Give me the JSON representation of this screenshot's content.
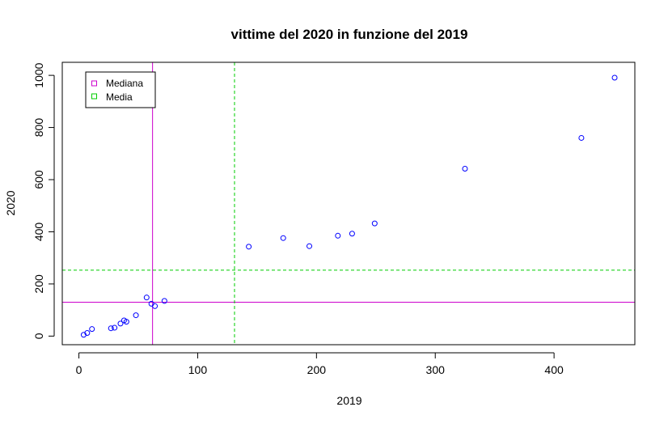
{
  "chart_data": {
    "type": "scatter",
    "title": "vittime del 2020 in funzione del 2019",
    "xlabel": "2019",
    "ylabel": "2020",
    "xlim": [
      -14,
      468
    ],
    "ylim": [
      -33,
      1050
    ],
    "xticks": [
      0,
      100,
      200,
      300,
      400
    ],
    "yticks": [
      0,
      200,
      400,
      600,
      800,
      1000
    ],
    "grid": false,
    "points": [
      {
        "x": 4,
        "y": 5
      },
      {
        "x": 7,
        "y": 12
      },
      {
        "x": 11,
        "y": 27
      },
      {
        "x": 27,
        "y": 30
      },
      {
        "x": 30,
        "y": 32
      },
      {
        "x": 35,
        "y": 48
      },
      {
        "x": 38,
        "y": 60
      },
      {
        "x": 40,
        "y": 55
      },
      {
        "x": 48,
        "y": 80
      },
      {
        "x": 57,
        "y": 148
      },
      {
        "x": 61,
        "y": 124
      },
      {
        "x": 64,
        "y": 115
      },
      {
        "x": 72,
        "y": 135
      },
      {
        "x": 143,
        "y": 343
      },
      {
        "x": 172,
        "y": 376
      },
      {
        "x": 194,
        "y": 345
      },
      {
        "x": 218,
        "y": 385
      },
      {
        "x": 230,
        "y": 393
      },
      {
        "x": 249,
        "y": 432
      },
      {
        "x": 325,
        "y": 642
      },
      {
        "x": 423,
        "y": 760
      },
      {
        "x": 451,
        "y": 991
      }
    ],
    "point_color": "#0000ff",
    "reference_lines": [
      {
        "name": "Mediana",
        "color": "#cc00cc",
        "dash": "solid",
        "x": 62,
        "y": 130
      },
      {
        "name": "Media",
        "color": "#00cc00",
        "dash": "dashed",
        "x": 131,
        "y": 253
      }
    ],
    "legend": {
      "placement": "top-left",
      "entries": [
        {
          "label": "Mediana",
          "color": "#cc00cc"
        },
        {
          "label": "Media",
          "color": "#00cc00"
        }
      ]
    }
  }
}
